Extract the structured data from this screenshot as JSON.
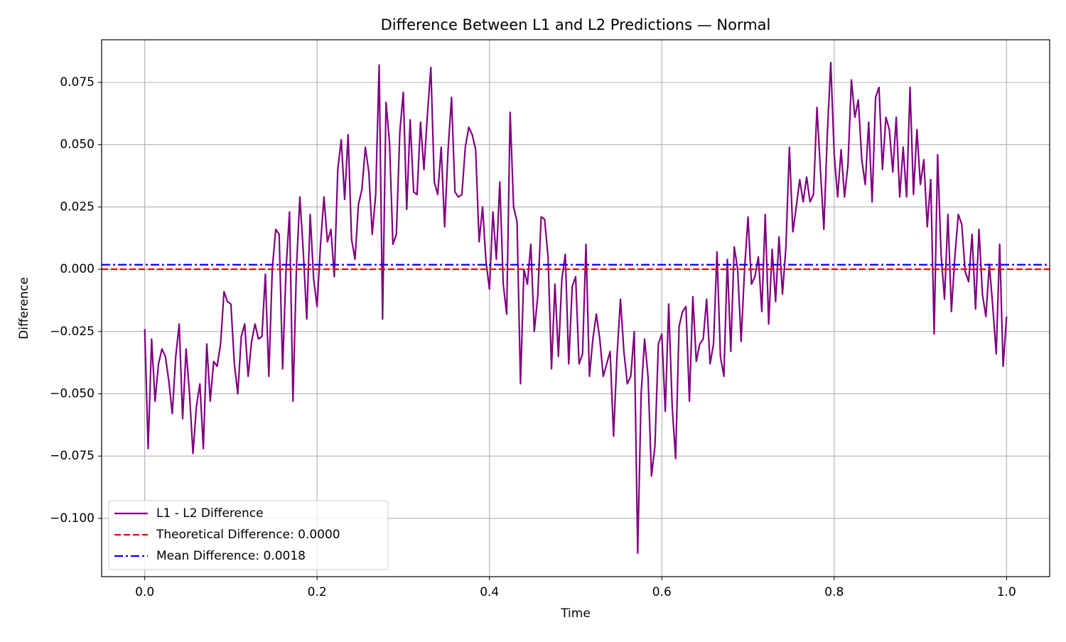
{
  "chart_data": {
    "type": "line",
    "title": "Difference Between L1 and L2 Predictions — Normal",
    "x_label": "Time",
    "y_label": "Difference",
    "grid": true,
    "legend": "lower left",
    "xlim": [
      -0.05,
      1.05
    ],
    "ylim": [
      -0.1234,
      0.0921
    ],
    "xticks": [
      {
        "value": 0,
        "label": "0.0"
      },
      0.2,
      0.4,
      0.6,
      0.8,
      {
        "value": 1,
        "label": "1.0"
      }
    ],
    "yticks": [
      {
        "value": -0.1,
        "label": "−0.100"
      },
      {
        "value": -0.075,
        "label": "−0.075"
      },
      {
        "value": -0.05,
        "label": "−0.050"
      },
      {
        "value": -0.025,
        "label": "−0.025"
      },
      {
        "value": 0,
        "label": "0.000"
      },
      {
        "value": 0.025,
        "label": "0.025"
      },
      {
        "value": 0.05,
        "label": "0.050"
      },
      0.075
    ],
    "x": [
      0,
      0.004,
      0.008,
      0.012,
      0.016,
      0.02,
      0.024,
      0.028,
      0.032,
      0.036,
      0.04,
      0.044,
      0.048,
      0.052,
      0.056,
      0.06,
      0.064,
      0.068,
      0.072,
      0.076,
      0.08,
      0.084,
      0.088,
      0.092,
      0.096,
      0.1,
      0.104,
      0.108,
      0.112,
      0.116,
      0.12,
      0.124,
      0.128,
      0.132,
      0.136,
      0.14,
      0.144,
      0.148,
      0.152,
      0.156,
      0.16,
      0.164,
      0.168,
      0.172,
      0.176,
      0.18,
      0.184,
      0.188,
      0.192,
      0.196,
      0.2,
      0.204,
      0.208,
      0.212,
      0.216,
      0.22,
      0.224,
      0.228,
      0.232,
      0.236,
      0.24,
      0.244,
      0.248,
      0.252,
      0.256,
      0.26,
      0.264,
      0.268,
      0.272,
      0.276,
      0.28,
      0.284,
      0.288,
      0.292,
      0.296,
      0.3,
      0.304,
      0.308,
      0.312,
      0.316,
      0.32,
      0.324,
      0.328,
      0.332,
      0.336,
      0.34,
      0.344,
      0.348,
      0.352,
      0.356,
      0.36,
      0.364,
      0.368,
      0.372,
      0.376,
      0.38,
      0.384,
      0.388,
      0.392,
      0.396,
      0.4,
      0.404,
      0.408,
      0.412,
      0.416,
      0.42,
      0.424,
      0.428,
      0.432,
      0.436,
      0.44,
      0.444,
      0.448,
      0.452,
      0.456,
      0.46,
      0.464,
      0.468,
      0.472,
      0.476,
      0.48,
      0.484,
      0.488,
      0.492,
      0.496,
      0.5,
      0.504,
      0.508,
      0.512,
      0.516,
      0.52,
      0.524,
      0.528,
      0.532,
      0.536,
      0.54,
      0.544,
      0.548,
      0.552,
      0.556,
      0.56,
      0.564,
      0.568,
      0.572,
      0.576,
      0.58,
      0.584,
      0.588,
      0.592,
      0.596,
      0.6,
      0.604,
      0.608,
      0.612,
      0.616,
      0.62,
      0.624,
      0.628,
      0.632,
      0.636,
      0.64,
      0.644,
      0.648,
      0.652,
      0.656,
      0.66,
      0.664,
      0.668,
      0.672,
      0.676,
      0.68,
      0.684,
      0.688,
      0.692,
      0.696,
      0.7,
      0.704,
      0.708,
      0.712,
      0.716,
      0.72,
      0.724,
      0.728,
      0.732,
      0.736,
      0.74,
      0.744,
      0.748,
      0.752,
      0.756,
      0.76,
      0.764,
      0.768,
      0.772,
      0.776,
      0.78,
      0.784,
      0.788,
      0.792,
      0.796,
      0.8,
      0.804,
      0.808,
      0.812,
      0.816,
      0.82,
      0.824,
      0.828,
      0.832,
      0.836,
      0.84,
      0.844,
      0.848,
      0.852,
      0.856,
      0.86,
      0.864,
      0.868,
      0.872,
      0.876,
      0.88,
      0.884,
      0.888,
      0.892,
      0.896,
      0.9,
      0.904,
      0.908,
      0.912,
      0.916,
      0.92,
      0.924,
      0.928,
      0.932,
      0.936,
      0.94,
      0.944,
      0.948,
      0.952,
      0.956,
      0.96,
      0.964,
      0.968,
      0.972,
      0.976,
      0.98,
      0.984,
      0.988,
      0.992,
      0.996,
      1
    ],
    "series": [
      {
        "name": "L1 - L2 Difference",
        "color": "#800080",
        "values": [
          -0.024,
          -0.072,
          -0.028,
          -0.053,
          -0.038,
          -0.032,
          -0.035,
          -0.045,
          -0.058,
          -0.035,
          -0.022,
          -0.06,
          -0.032,
          -0.05,
          -0.074,
          -0.055,
          -0.046,
          -0.072,
          -0.03,
          -0.053,
          -0.037,
          -0.039,
          -0.03,
          -0.009,
          -0.013,
          -0.014,
          -0.038,
          -0.05,
          -0.027,
          -0.022,
          -0.043,
          -0.029,
          -0.022,
          -0.028,
          -0.027,
          -0.002,
          -0.043,
          0.0,
          0.016,
          0.014,
          -0.04,
          0.0,
          0.023,
          -0.053,
          0.0,
          0.029,
          0.007,
          -0.02,
          0.022,
          -0.004,
          -0.015,
          0.01,
          0.029,
          0.011,
          0.016,
          -0.003,
          0.04,
          0.052,
          0.028,
          0.054,
          0.012,
          0.004,
          0.026,
          0.032,
          0.049,
          0.039,
          0.014,
          0.03,
          0.082,
          -0.02,
          0.067,
          0.051,
          0.01,
          0.014,
          0.055,
          0.071,
          0.024,
          0.06,
          0.031,
          0.03,
          0.059,
          0.04,
          0.062,
          0.081,
          0.035,
          0.03,
          0.049,
          0.017,
          0.048,
          0.069,
          0.031,
          0.029,
          0.03,
          0.049,
          0.057,
          0.054,
          0.048,
          0.011,
          0.025,
          0.003,
          -0.008,
          0.023,
          0.004,
          0.035,
          -0.006,
          -0.018,
          0.063,
          0.025,
          0.019,
          -0.046,
          0.0,
          -0.006,
          0.01,
          -0.025,
          -0.011,
          0.021,
          0.02,
          0.005,
          -0.04,
          -0.006,
          -0.035,
          -0.004,
          0.006,
          -0.038,
          -0.007,
          -0.003,
          -0.038,
          -0.034,
          0.01,
          -0.043,
          -0.028,
          -0.018,
          -0.028,
          -0.043,
          -0.038,
          -0.033,
          -0.067,
          -0.035,
          -0.012,
          -0.033,
          -0.046,
          -0.043,
          -0.025,
          -0.114,
          -0.05,
          -0.028,
          -0.043,
          -0.083,
          -0.071,
          -0.03,
          -0.026,
          -0.057,
          -0.014,
          -0.055,
          -0.076,
          -0.023,
          -0.017,
          -0.015,
          -0.053,
          -0.011,
          -0.037,
          -0.03,
          -0.028,
          -0.012,
          -0.038,
          -0.03,
          0.007,
          -0.035,
          -0.043,
          0.004,
          -0.033,
          0.009,
          0.0,
          -0.029,
          0.0,
          0.021,
          -0.006,
          -0.003,
          0.005,
          -0.017,
          0.022,
          -0.022,
          0.008,
          -0.013,
          0.013,
          -0.01,
          0.009,
          0.049,
          0.015,
          0.025,
          0.036,
          0.027,
          0.037,
          0.027,
          0.03,
          0.065,
          0.04,
          0.016,
          0.054,
          0.083,
          0.046,
          0.029,
          0.048,
          0.029,
          0.042,
          0.076,
          0.061,
          0.068,
          0.044,
          0.034,
          0.059,
          0.027,
          0.069,
          0.073,
          0.04,
          0.061,
          0.056,
          0.039,
          0.061,
          0.029,
          0.049,
          0.029,
          0.073,
          0.03,
          0.056,
          0.034,
          0.044,
          0.017,
          0.036,
          -0.026,
          0.046,
          0.006,
          -0.012,
          0.022,
          -0.017,
          0.005,
          0.022,
          0.018,
          -0.001,
          -0.005,
          0.014,
          -0.016,
          0.016,
          -0.01,
          -0.019,
          0.002,
          -0.015,
          -0.034,
          0.01,
          -0.039,
          -0.019
        ]
      }
    ],
    "hlines": [
      {
        "name": "Theoretical Difference: 0.0000",
        "value": 0,
        "color": "#ff0000",
        "style": "dashed"
      },
      {
        "name": "Mean Difference: 0.0018",
        "value": 0.0018,
        "color": "#0000ff",
        "style": "dashdot"
      }
    ]
  }
}
